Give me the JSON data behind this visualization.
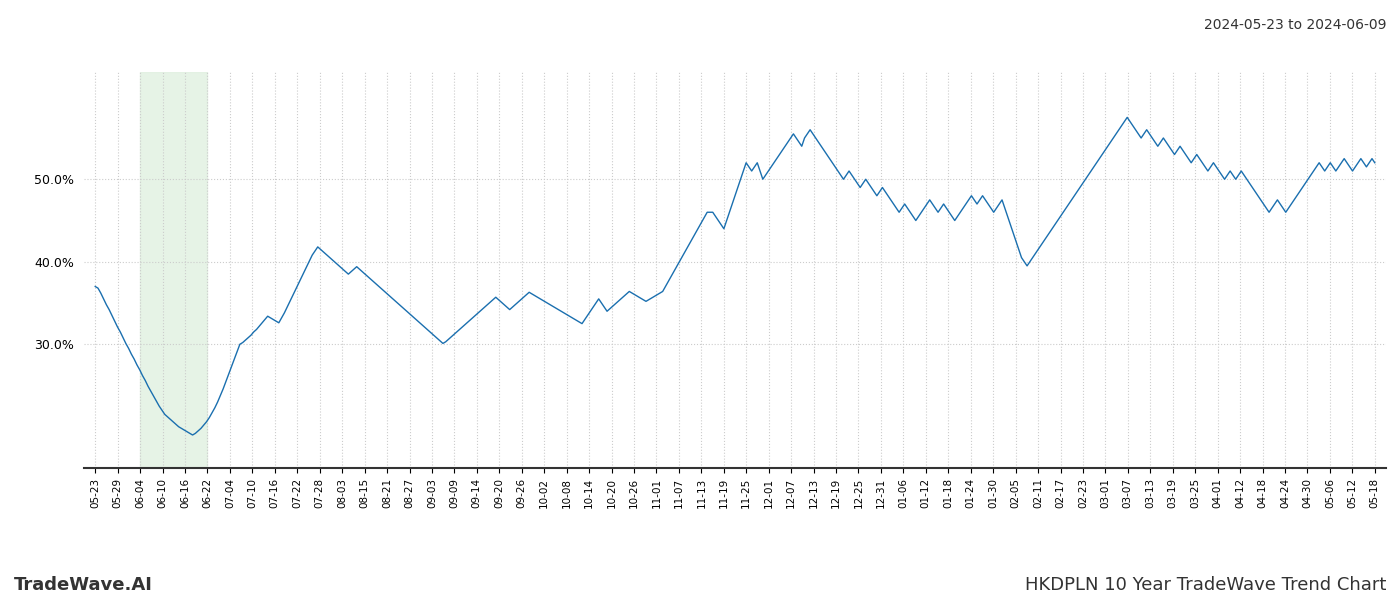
{
  "title_top_right": "2024-05-23 to 2024-06-09",
  "title_bottom_right": "HKDPLN 10 Year TradeWave Trend Chart",
  "title_bottom_left": "TradeWave.AI",
  "background_color": "#ffffff",
  "line_color": "#1a6faf",
  "line_width": 1.0,
  "highlight_color": "#e0f0e0",
  "highlight_alpha": 0.8,
  "yticks": [
    30.0,
    40.0,
    50.0
  ],
  "ylim": [
    15,
    63
  ],
  "grid_color": "#cccccc",
  "grid_style": ":",
  "x_labels": [
    "05-23",
    "05-29",
    "06-04",
    "06-10",
    "06-16",
    "06-22",
    "07-04",
    "07-10",
    "07-16",
    "07-22",
    "07-28",
    "08-03",
    "08-15",
    "08-21",
    "08-27",
    "09-03",
    "09-09",
    "09-14",
    "09-20",
    "09-26",
    "10-02",
    "10-08",
    "10-14",
    "10-20",
    "10-26",
    "11-01",
    "11-07",
    "11-13",
    "11-19",
    "11-25",
    "12-01",
    "12-07",
    "12-13",
    "12-19",
    "12-25",
    "12-31",
    "01-06",
    "01-12",
    "01-18",
    "01-24",
    "01-30",
    "02-05",
    "02-11",
    "02-17",
    "02-23",
    "03-01",
    "03-07",
    "03-13",
    "03-19",
    "03-25",
    "04-01",
    "04-12",
    "04-18",
    "04-24",
    "04-30",
    "05-06",
    "05-12",
    "05-18"
  ],
  "y_values": [
    37.0,
    36.8,
    36.2,
    35.5,
    34.8,
    34.2,
    33.5,
    32.8,
    32.1,
    31.5,
    30.8,
    30.1,
    29.5,
    28.8,
    28.2,
    27.5,
    26.9,
    26.2,
    25.6,
    24.9,
    24.3,
    23.7,
    23.1,
    22.5,
    22.0,
    21.5,
    21.2,
    20.9,
    20.6,
    20.3,
    20.0,
    19.8,
    19.6,
    19.4,
    19.2,
    19.0,
    19.2,
    19.5,
    19.8,
    20.2,
    20.6,
    21.1,
    21.7,
    22.3,
    23.0,
    23.8,
    24.6,
    25.5,
    26.4,
    27.3,
    28.2,
    29.1,
    30.0,
    30.2,
    30.5,
    30.8,
    31.1,
    31.5,
    31.8,
    32.2,
    32.6,
    33.0,
    33.4,
    33.2,
    33.0,
    32.8,
    32.6,
    33.2,
    33.8,
    34.5,
    35.2,
    35.9,
    36.6,
    37.3,
    38.0,
    38.7,
    39.4,
    40.1,
    40.8,
    41.3,
    41.8,
    41.5,
    41.2,
    40.9,
    40.6,
    40.3,
    40.0,
    39.7,
    39.4,
    39.1,
    38.8,
    38.5,
    38.8,
    39.1,
    39.4,
    39.1,
    38.8,
    38.5,
    38.2,
    37.9,
    37.6,
    37.3,
    37.0,
    36.7,
    36.4,
    36.1,
    35.8,
    35.5,
    35.2,
    34.9,
    34.6,
    34.3,
    34.0,
    33.7,
    33.4,
    33.1,
    32.8,
    32.5,
    32.2,
    31.9,
    31.6,
    31.3,
    31.0,
    30.7,
    30.4,
    30.1,
    30.3,
    30.6,
    30.9,
    31.2,
    31.5,
    31.8,
    32.1,
    32.4,
    32.7,
    33.0,
    33.3,
    33.6,
    33.9,
    34.2,
    34.5,
    34.8,
    35.1,
    35.4,
    35.7,
    35.4,
    35.1,
    34.8,
    34.5,
    34.2,
    34.5,
    34.8,
    35.1,
    35.4,
    35.7,
    36.0,
    36.3,
    36.1,
    35.9,
    35.7,
    35.5,
    35.3,
    35.1,
    34.9,
    34.7,
    34.5,
    34.3,
    34.1,
    33.9,
    33.7,
    33.5,
    33.3,
    33.1,
    32.9,
    32.7,
    32.5,
    33.0,
    33.5,
    34.0,
    34.5,
    35.0,
    35.5,
    35.0,
    34.5,
    34.0,
    34.3,
    34.6,
    34.9,
    35.2,
    35.5,
    35.8,
    36.1,
    36.4,
    36.2,
    36.0,
    35.8,
    35.6,
    35.4,
    35.2,
    35.4,
    35.6,
    35.8,
    36.0,
    36.2,
    36.4,
    37.0,
    37.6,
    38.2,
    38.8,
    39.4,
    40.0,
    40.6,
    41.2,
    41.8,
    42.4,
    43.0,
    43.6,
    44.2,
    44.8,
    45.4,
    46.0,
    46.0,
    46.0,
    45.5,
    45.0,
    44.5,
    44.0,
    45.0,
    46.0,
    47.0,
    48.0,
    49.0,
    50.0,
    51.0,
    52.0,
    51.5,
    51.0,
    51.5,
    52.0,
    51.0,
    50.0,
    50.5,
    51.0,
    51.5,
    52.0,
    52.5,
    53.0,
    53.5,
    54.0,
    54.5,
    55.0,
    55.5,
    55.0,
    54.5,
    54.0,
    55.0,
    55.5,
    56.0,
    55.5,
    55.0,
    54.5,
    54.0,
    53.5,
    53.0,
    52.5,
    52.0,
    51.5,
    51.0,
    50.5,
    50.0,
    50.5,
    51.0,
    50.5,
    50.0,
    49.5,
    49.0,
    49.5,
    50.0,
    49.5,
    49.0,
    48.5,
    48.0,
    48.5,
    49.0,
    48.5,
    48.0,
    47.5,
    47.0,
    46.5,
    46.0,
    46.5,
    47.0,
    46.5,
    46.0,
    45.5,
    45.0,
    45.5,
    46.0,
    46.5,
    47.0,
    47.5,
    47.0,
    46.5,
    46.0,
    46.5,
    47.0,
    46.5,
    46.0,
    45.5,
    45.0,
    45.5,
    46.0,
    46.5,
    47.0,
    47.5,
    48.0,
    47.5,
    47.0,
    47.5,
    48.0,
    47.5,
    47.0,
    46.5,
    46.0,
    46.5,
    47.0,
    47.5,
    46.5,
    45.5,
    44.5,
    43.5,
    42.5,
    41.5,
    40.5,
    40.0,
    39.5,
    40.0,
    40.5,
    41.0,
    41.5,
    42.0,
    42.5,
    43.0,
    43.5,
    44.0,
    44.5,
    45.0,
    45.5,
    46.0,
    46.5,
    47.0,
    47.5,
    48.0,
    48.5,
    49.0,
    49.5,
    50.0,
    50.5,
    51.0,
    51.5,
    52.0,
    52.5,
    53.0,
    53.5,
    54.0,
    54.5,
    55.0,
    55.5,
    56.0,
    56.5,
    57.0,
    57.5,
    57.0,
    56.5,
    56.0,
    55.5,
    55.0,
    55.5,
    56.0,
    55.5,
    55.0,
    54.5,
    54.0,
    54.5,
    55.0,
    54.5,
    54.0,
    53.5,
    53.0,
    53.5,
    54.0,
    53.5,
    53.0,
    52.5,
    52.0,
    52.5,
    53.0,
    52.5,
    52.0,
    51.5,
    51.0,
    51.5,
    52.0,
    51.5,
    51.0,
    50.5,
    50.0,
    50.5,
    51.0,
    50.5,
    50.0,
    50.5,
    51.0,
    50.5,
    50.0,
    49.5,
    49.0,
    48.5,
    48.0,
    47.5,
    47.0,
    46.5,
    46.0,
    46.5,
    47.0,
    47.5,
    47.0,
    46.5,
    46.0,
    46.5,
    47.0,
    47.5,
    48.0,
    48.5,
    49.0,
    49.5,
    50.0,
    50.5,
    51.0,
    51.5,
    52.0,
    51.5,
    51.0,
    51.5,
    52.0,
    51.5,
    51.0,
    51.5,
    52.0,
    52.5,
    52.0,
    51.5,
    51.0,
    51.5,
    52.0,
    52.5,
    52.0,
    51.5,
    52.0,
    52.5,
    52.0
  ]
}
